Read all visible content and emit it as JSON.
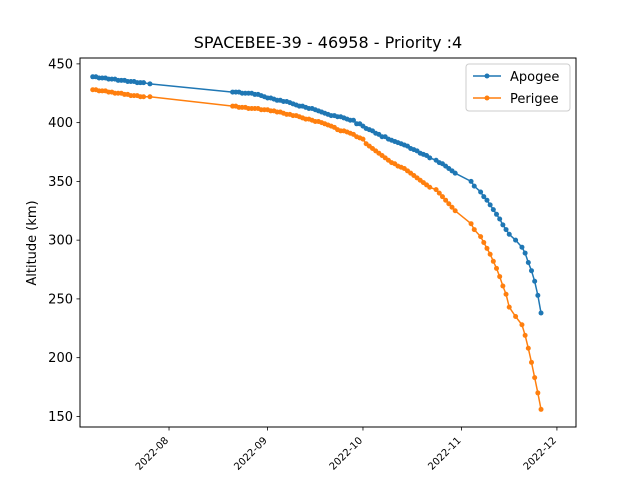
{
  "chart_data": {
    "type": "line",
    "title": "SPACEBEE-39 - 46958 - Priority :4",
    "xlabel": "",
    "ylabel": "Altitude (km)",
    "x_type": "date",
    "xlim": [
      "2022-07-04",
      "2022-12-07"
    ],
    "ylim": [
      141,
      455
    ],
    "xticks": [
      "2022-08",
      "2022-09",
      "2022-10",
      "2022-11",
      "2022-12"
    ],
    "yticks": [
      150,
      200,
      250,
      300,
      350,
      400,
      450
    ],
    "grid": false,
    "legend_position": "top-right",
    "series": [
      {
        "name": "Apogee",
        "color": "#1f77b4",
        "x": [
          "2022-07-08",
          "2022-07-09",
          "2022-07-10",
          "2022-07-11",
          "2022-07-12",
          "2022-07-13",
          "2022-07-14",
          "2022-07-15",
          "2022-07-16",
          "2022-07-17",
          "2022-07-18",
          "2022-07-19",
          "2022-07-20",
          "2022-07-21",
          "2022-07-22",
          "2022-07-23",
          "2022-07-24",
          "2022-07-26",
          "2022-08-21",
          "2022-08-22",
          "2022-08-23",
          "2022-08-24",
          "2022-08-25",
          "2022-08-26",
          "2022-08-27",
          "2022-08-28",
          "2022-08-29",
          "2022-08-30",
          "2022-08-31",
          "2022-09-01",
          "2022-09-02",
          "2022-09-03",
          "2022-09-04",
          "2022-09-05",
          "2022-09-06",
          "2022-09-07",
          "2022-09-08",
          "2022-09-09",
          "2022-09-10",
          "2022-09-11",
          "2022-09-12",
          "2022-09-13",
          "2022-09-14",
          "2022-09-15",
          "2022-09-16",
          "2022-09-17",
          "2022-09-18",
          "2022-09-19",
          "2022-09-20",
          "2022-09-21",
          "2022-09-22",
          "2022-09-23",
          "2022-09-24",
          "2022-09-25",
          "2022-09-26",
          "2022-09-27",
          "2022-09-28",
          "2022-09-29",
          "2022-09-30",
          "2022-10-01",
          "2022-10-02",
          "2022-10-03",
          "2022-10-04",
          "2022-10-05",
          "2022-10-06",
          "2022-10-07",
          "2022-10-08",
          "2022-10-09",
          "2022-10-10",
          "2022-10-11",
          "2022-10-12",
          "2022-10-13",
          "2022-10-14",
          "2022-10-15",
          "2022-10-16",
          "2022-10-17",
          "2022-10-18",
          "2022-10-19",
          "2022-10-20",
          "2022-10-21",
          "2022-10-22",
          "2022-10-24",
          "2022-10-25",
          "2022-10-26",
          "2022-10-27",
          "2022-10-28",
          "2022-10-29",
          "2022-10-30",
          "2022-11-04",
          "2022-11-05",
          "2022-11-07",
          "2022-11-08",
          "2022-11-09",
          "2022-11-10",
          "2022-11-11",
          "2022-11-12",
          "2022-11-13",
          "2022-11-14",
          "2022-11-15",
          "2022-11-16",
          "2022-11-18",
          "2022-11-20",
          "2022-11-21",
          "2022-11-22",
          "2022-11-23",
          "2022-11-24",
          "2022-11-25",
          "2022-11-26"
        ],
        "values": [
          439,
          439,
          438,
          438,
          438,
          437,
          437,
          437,
          436,
          436,
          436,
          435,
          435,
          435,
          434,
          434,
          434,
          433,
          426,
          426,
          426,
          425,
          425,
          425,
          425,
          424,
          424,
          423,
          422,
          421,
          421,
          420,
          419,
          419,
          418,
          418,
          417,
          416,
          415,
          414,
          414,
          413,
          412,
          412,
          411,
          410,
          409,
          408,
          407,
          406,
          406,
          405,
          405,
          404,
          403,
          402,
          402,
          399,
          399,
          397,
          395,
          394,
          393,
          391,
          390,
          388,
          388,
          386,
          385,
          384,
          383,
          382,
          381,
          380,
          378,
          377,
          376,
          374,
          373,
          372,
          370,
          368,
          366,
          365,
          363,
          361,
          359,
          357,
          350,
          346,
          341,
          337,
          334,
          330,
          326,
          322,
          318,
          313,
          309,
          305,
          300,
          294,
          289,
          281,
          274,
          265,
          253,
          238
        ]
      },
      {
        "name": "Perigee",
        "color": "#ff7f0e",
        "x": [
          "2022-07-08",
          "2022-07-09",
          "2022-07-10",
          "2022-07-11",
          "2022-07-12",
          "2022-07-13",
          "2022-07-14",
          "2022-07-15",
          "2022-07-16",
          "2022-07-17",
          "2022-07-18",
          "2022-07-19",
          "2022-07-20",
          "2022-07-21",
          "2022-07-22",
          "2022-07-23",
          "2022-07-24",
          "2022-07-26",
          "2022-08-21",
          "2022-08-22",
          "2022-08-23",
          "2022-08-24",
          "2022-08-25",
          "2022-08-26",
          "2022-08-27",
          "2022-08-28",
          "2022-08-29",
          "2022-08-30",
          "2022-08-31",
          "2022-09-01",
          "2022-09-02",
          "2022-09-03",
          "2022-09-04",
          "2022-09-05",
          "2022-09-06",
          "2022-09-07",
          "2022-09-08",
          "2022-09-09",
          "2022-09-10",
          "2022-09-11",
          "2022-09-12",
          "2022-09-13",
          "2022-09-14",
          "2022-09-15",
          "2022-09-16",
          "2022-09-17",
          "2022-09-18",
          "2022-09-19",
          "2022-09-20",
          "2022-09-21",
          "2022-09-22",
          "2022-09-23",
          "2022-09-24",
          "2022-09-25",
          "2022-09-26",
          "2022-09-27",
          "2022-09-28",
          "2022-09-29",
          "2022-09-30",
          "2022-10-01",
          "2022-10-02",
          "2022-10-03",
          "2022-10-04",
          "2022-10-05",
          "2022-10-06",
          "2022-10-07",
          "2022-10-08",
          "2022-10-09",
          "2022-10-10",
          "2022-10-11",
          "2022-10-12",
          "2022-10-13",
          "2022-10-14",
          "2022-10-15",
          "2022-10-16",
          "2022-10-17",
          "2022-10-18",
          "2022-10-19",
          "2022-10-20",
          "2022-10-21",
          "2022-10-22",
          "2022-10-24",
          "2022-10-25",
          "2022-10-26",
          "2022-10-27",
          "2022-10-28",
          "2022-10-29",
          "2022-10-30",
          "2022-11-04",
          "2022-11-05",
          "2022-11-07",
          "2022-11-08",
          "2022-11-09",
          "2022-11-10",
          "2022-11-11",
          "2022-11-12",
          "2022-11-13",
          "2022-11-14",
          "2022-11-15",
          "2022-11-16",
          "2022-11-18",
          "2022-11-20",
          "2022-11-21",
          "2022-11-22",
          "2022-11-23",
          "2022-11-24",
          "2022-11-25",
          "2022-11-26"
        ],
        "values": [
          428,
          428,
          427,
          427,
          427,
          426,
          426,
          425,
          425,
          425,
          424,
          424,
          423,
          423,
          423,
          422,
          422,
          422,
          414,
          414,
          413,
          413,
          413,
          412,
          412,
          412,
          412,
          411,
          411,
          411,
          410,
          410,
          409,
          409,
          408,
          407,
          407,
          406,
          406,
          405,
          404,
          403,
          403,
          402,
          401,
          401,
          400,
          399,
          398,
          397,
          396,
          394,
          393,
          393,
          392,
          391,
          390,
          388,
          387,
          386,
          382,
          380,
          378,
          376,
          374,
          372,
          370,
          368,
          366,
          365,
          363,
          362,
          361,
          359,
          357,
          355,
          353,
          351,
          349,
          347,
          345,
          343,
          340,
          337,
          334,
          331,
          328,
          325,
          314,
          309,
          303,
          298,
          293,
          288,
          282,
          276,
          269,
          261,
          254,
          243,
          235,
          228,
          219,
          208,
          196,
          183,
          170,
          156
        ]
      }
    ]
  }
}
